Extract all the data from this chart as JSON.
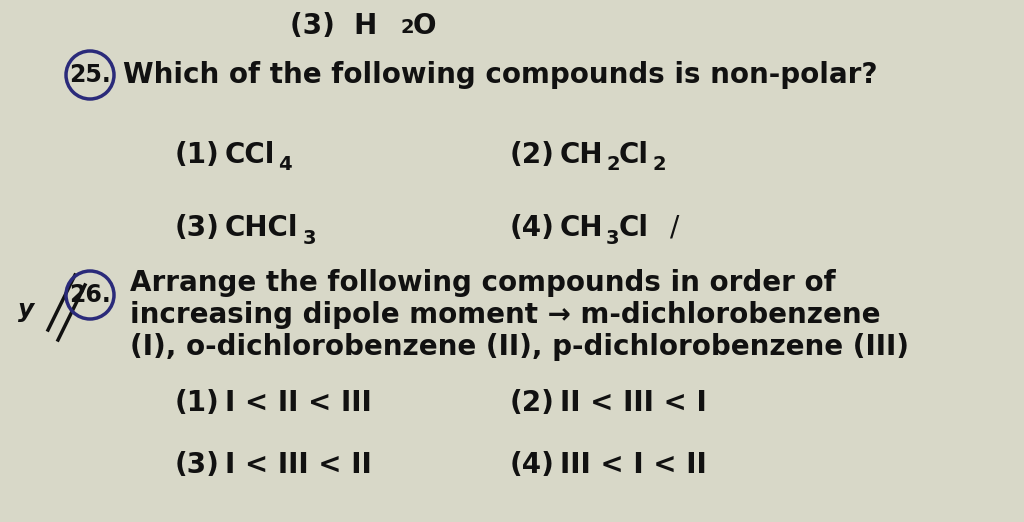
{
  "background_color": "#d8d8c8",
  "text_color": "#111111",
  "circle_color": "#2a2a7a",
  "font_size_q": 20,
  "font_size_opt": 20,
  "font_size_sub": 14,
  "q25_text": "Which of the following compounds is non-polar?",
  "q26_text1": "Arrange the following compounds in order of",
  "q26_text2": "increasing dipole moment → m-dichlorobenzene",
  "q26_text3": "(I), o-dichlorobenzene (II), p-dichlorobenzene (III)",
  "q26_opt1": "I < II < III",
  "q26_opt2": "II < III < I",
  "q26_opt3": "I < III < II",
  "q26_opt4": "III < I < II",
  "top_partial": "(3)  H",
  "top_partial_sub": "2",
  "top_partial_rest": "O"
}
